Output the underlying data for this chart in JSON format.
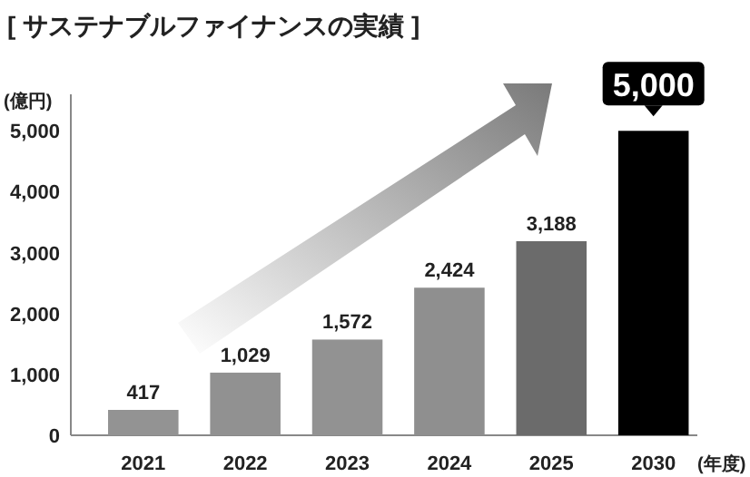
{
  "chart_data": {
    "type": "bar",
    "title": "[ サステナブルファイナンスの実績 ]",
    "ylabel": "(億円)",
    "xlabel": "(年度)",
    "categories": [
      "2021",
      "2022",
      "2023",
      "2024",
      "2025",
      "2030"
    ],
    "values": [
      417,
      1029,
      1572,
      2424,
      3188,
      5000
    ],
    "colors": [
      "#939393",
      "#919191",
      "#929292",
      "#8f8f8f",
      "#6b6b6b",
      "#000000"
    ],
    "value_labels": [
      "417",
      "1,029",
      "1,572",
      "2,424",
      "3,188",
      "5,000"
    ],
    "ylim": [
      0,
      5600
    ],
    "yticks": [
      0,
      {
        "value": 1000,
        "label": "1,000"
      },
      {
        "value": 2000,
        "label": "2,000"
      },
      {
        "value": 3000,
        "label": "3,000"
      },
      {
        "value": 4000,
        "label": "4,000"
      },
      {
        "value": 5000,
        "label": "5,000"
      }
    ],
    "grid": false
  }
}
